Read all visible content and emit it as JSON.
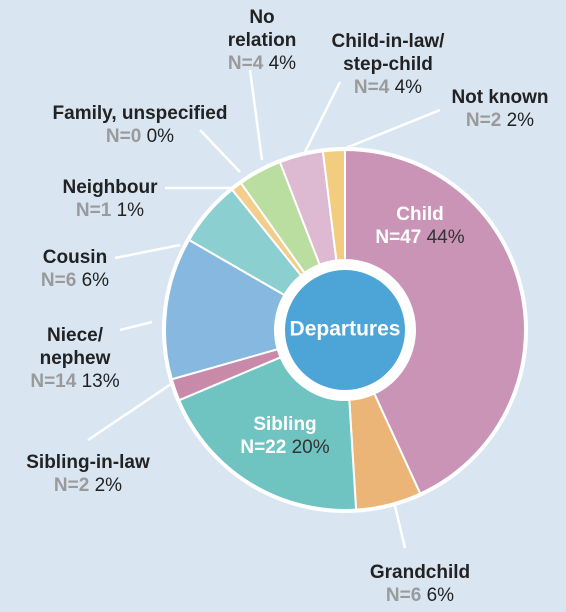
{
  "chart_data": {
    "type": "pie",
    "donut": true,
    "center_label": "Departures",
    "center_color": "#4da4d6",
    "categories": [
      [
        "Child"
      ],
      [
        "Grandchild"
      ],
      [
        "Sibling"
      ],
      [
        "Sibling-in-law"
      ],
      [
        "Niece/",
        "nephew"
      ],
      [
        "Cousin"
      ],
      [
        "Neighbour"
      ],
      [
        "Family, unspecified"
      ],
      [
        "No",
        "relation"
      ],
      [
        "Child-in-law/",
        "step-child"
      ],
      [
        "Not known"
      ]
    ],
    "n_labels": [
      "N=47",
      "N=6",
      "N=22",
      "N=2",
      "N=14",
      "N=6",
      "N=1",
      "N=0",
      "N=4",
      "N=4",
      "N=2"
    ],
    "values": [
      44,
      6,
      20,
      2,
      13,
      6,
      1,
      0,
      4,
      4,
      2
    ],
    "value_labels": [
      "44%",
      "6%",
      "20%",
      "2%",
      "13%",
      "6%",
      "1%",
      "0%",
      "4%",
      "4%",
      "2%"
    ],
    "colors": [
      "#c994b6",
      "#ebb578",
      "#6fc3c1",
      "#c98aa9",
      "#87b8e0",
      "#8bcfd0",
      "#f2cd8c",
      "#cccccc",
      "#badda0",
      "#ddb9d2",
      "#f3cd7f"
    ]
  }
}
